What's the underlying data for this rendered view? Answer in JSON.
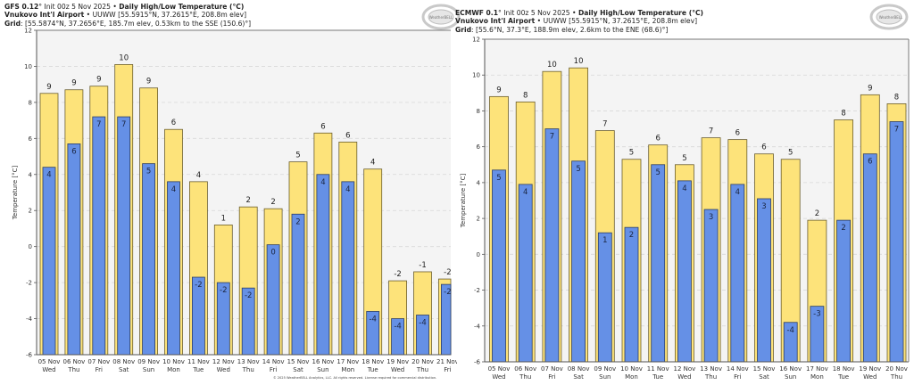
{
  "colors": {
    "high": "#fde37a",
    "low": "#6590e6",
    "plot_bg": "#f4f4f4",
    "bar_edge": "#6b5e2e",
    "grid": "#d8d8d8"
  },
  "logo": {
    "name": "WeatherBELL"
  },
  "copyright": "© 2025 WeatherBELL Analytics, LLC. All rights reserved. License required for commercial distribution.",
  "chart_data": [
    {
      "type": "bar",
      "id": "gfs",
      "model": "GFS 0.12",
      "model_suffix": "°",
      "init": "Init 00z 5 Nov 2025",
      "title": "Daily High/Low Temperature (°C)",
      "station": "Vnukovo Int'l Airport",
      "station_info": "UUWW [55.5915°N, 37.2615°E, 208.8m elev]",
      "grid_label": "Grid",
      "grid_info": "[55.5874°N, 37.2656°E, 185.7m elev, 0.53km to the SSE (150.6)°]",
      "xlabel": "",
      "ylabel": "Temperature [°C]",
      "ylim": [
        -6,
        12
      ],
      "yticks": [
        -6,
        -4,
        -2,
        0,
        2,
        4,
        6,
        8,
        10,
        12
      ],
      "grid": true,
      "categories": [
        "05 Nov",
        "06 Nov",
        "07 Nov",
        "08 Nov",
        "09 Nov",
        "10 Nov",
        "11 Nov",
        "12 Nov",
        "13 Nov",
        "14 Nov",
        "15 Nov",
        "16 Nov",
        "17 Nov",
        "18 Nov",
        "19 Nov",
        "20 Nov",
        "21 Nov"
      ],
      "weekdays": [
        "Wed",
        "Thu",
        "Fri",
        "Sat",
        "Sun",
        "Mon",
        "Tue",
        "Wed",
        "Thu",
        "Fri",
        "Sat",
        "Sun",
        "Mon",
        "Tue",
        "Wed",
        "Thu",
        "Fri"
      ],
      "series": [
        {
          "name": "High",
          "values": [
            8.5,
            8.7,
            8.9,
            10.1,
            8.8,
            6.5,
            3.6,
            1.2,
            2.2,
            2.1,
            4.7,
            6.3,
            5.8,
            4.3,
            -1.9,
            -1.4,
            -1.8
          ],
          "labels": [
            "9",
            "9",
            "9",
            "10",
            "9",
            "6",
            "4",
            "1",
            "2",
            "2",
            "5",
            "6",
            "6",
            "4",
            "-2",
            "-1",
            "-2"
          ]
        },
        {
          "name": "Low",
          "values": [
            4.4,
            5.7,
            7.2,
            7.2,
            4.6,
            3.6,
            -1.7,
            -2.0,
            -2.3,
            0.1,
            1.8,
            4.0,
            3.6,
            -3.6,
            -4.0,
            -3.8,
            -2.1
          ],
          "labels": [
            "4",
            "6",
            "7",
            "7",
            "5",
            "4",
            "-2",
            "-2",
            "-2",
            "0",
            "2",
            "4",
            "4",
            "-4",
            "-4",
            "-4",
            "-2"
          ]
        }
      ]
    },
    {
      "type": "bar",
      "id": "ecmwf",
      "model": "ECMWF 0.1",
      "model_suffix": "°",
      "init": "Init 00z 5 Nov 2025",
      "title": "Daily High/Low Temperature (°C)",
      "station": "Vnukovo Int'l Airport",
      "station_info": "UUWW [55.5915°N, 37.2615°E, 208.8m elev]",
      "grid_label": "Grid",
      "grid_info": "[55.6°N, 37.3°E, 188.9m elev, 2.6km to the ENE (68.6)°]",
      "xlabel": "",
      "ylabel": "Temperature [°C]",
      "ylim": [
        -6,
        12
      ],
      "yticks": [
        -6,
        -4,
        -2,
        0,
        2,
        4,
        6,
        8,
        10,
        12
      ],
      "grid": true,
      "categories": [
        "05 Nov",
        "06 Nov",
        "07 Nov",
        "08 Nov",
        "09 Nov",
        "10 Nov",
        "11 Nov",
        "12 Nov",
        "13 Nov",
        "14 Nov",
        "15 Nov",
        "16 Nov",
        "17 Nov",
        "18 Nov",
        "19 Nov",
        "20 Nov"
      ],
      "weekdays": [
        "Wed",
        "Thu",
        "Fri",
        "Sat",
        "Sun",
        "Mon",
        "Tue",
        "Wed",
        "Thu",
        "Fri",
        "Sat",
        "Sun",
        "Mon",
        "Tue",
        "Wed",
        "Thu"
      ],
      "series": [
        {
          "name": "High",
          "values": [
            8.8,
            8.5,
            10.2,
            10.4,
            6.9,
            5.3,
            6.1,
            5.0,
            6.5,
            6.4,
            5.6,
            5.3,
            1.9,
            7.5,
            8.9,
            8.4
          ],
          "labels": [
            "9",
            "8",
            "10",
            "10",
            "7",
            "5",
            "6",
            "5",
            "7",
            "6",
            "6",
            "5",
            "2",
            "8",
            "9",
            "8"
          ]
        },
        {
          "name": "Low",
          "values": [
            4.7,
            3.9,
            7.0,
            5.2,
            1.2,
            1.5,
            5.0,
            4.1,
            2.5,
            3.9,
            3.1,
            -3.8,
            -2.9,
            1.9,
            5.6,
            7.4
          ],
          "labels": [
            "5",
            "4",
            "7",
            "5",
            "1",
            "2",
            "5",
            "4",
            "3",
            "4",
            "3",
            "-4",
            "-3",
            "2",
            "6",
            "7"
          ]
        }
      ]
    }
  ]
}
